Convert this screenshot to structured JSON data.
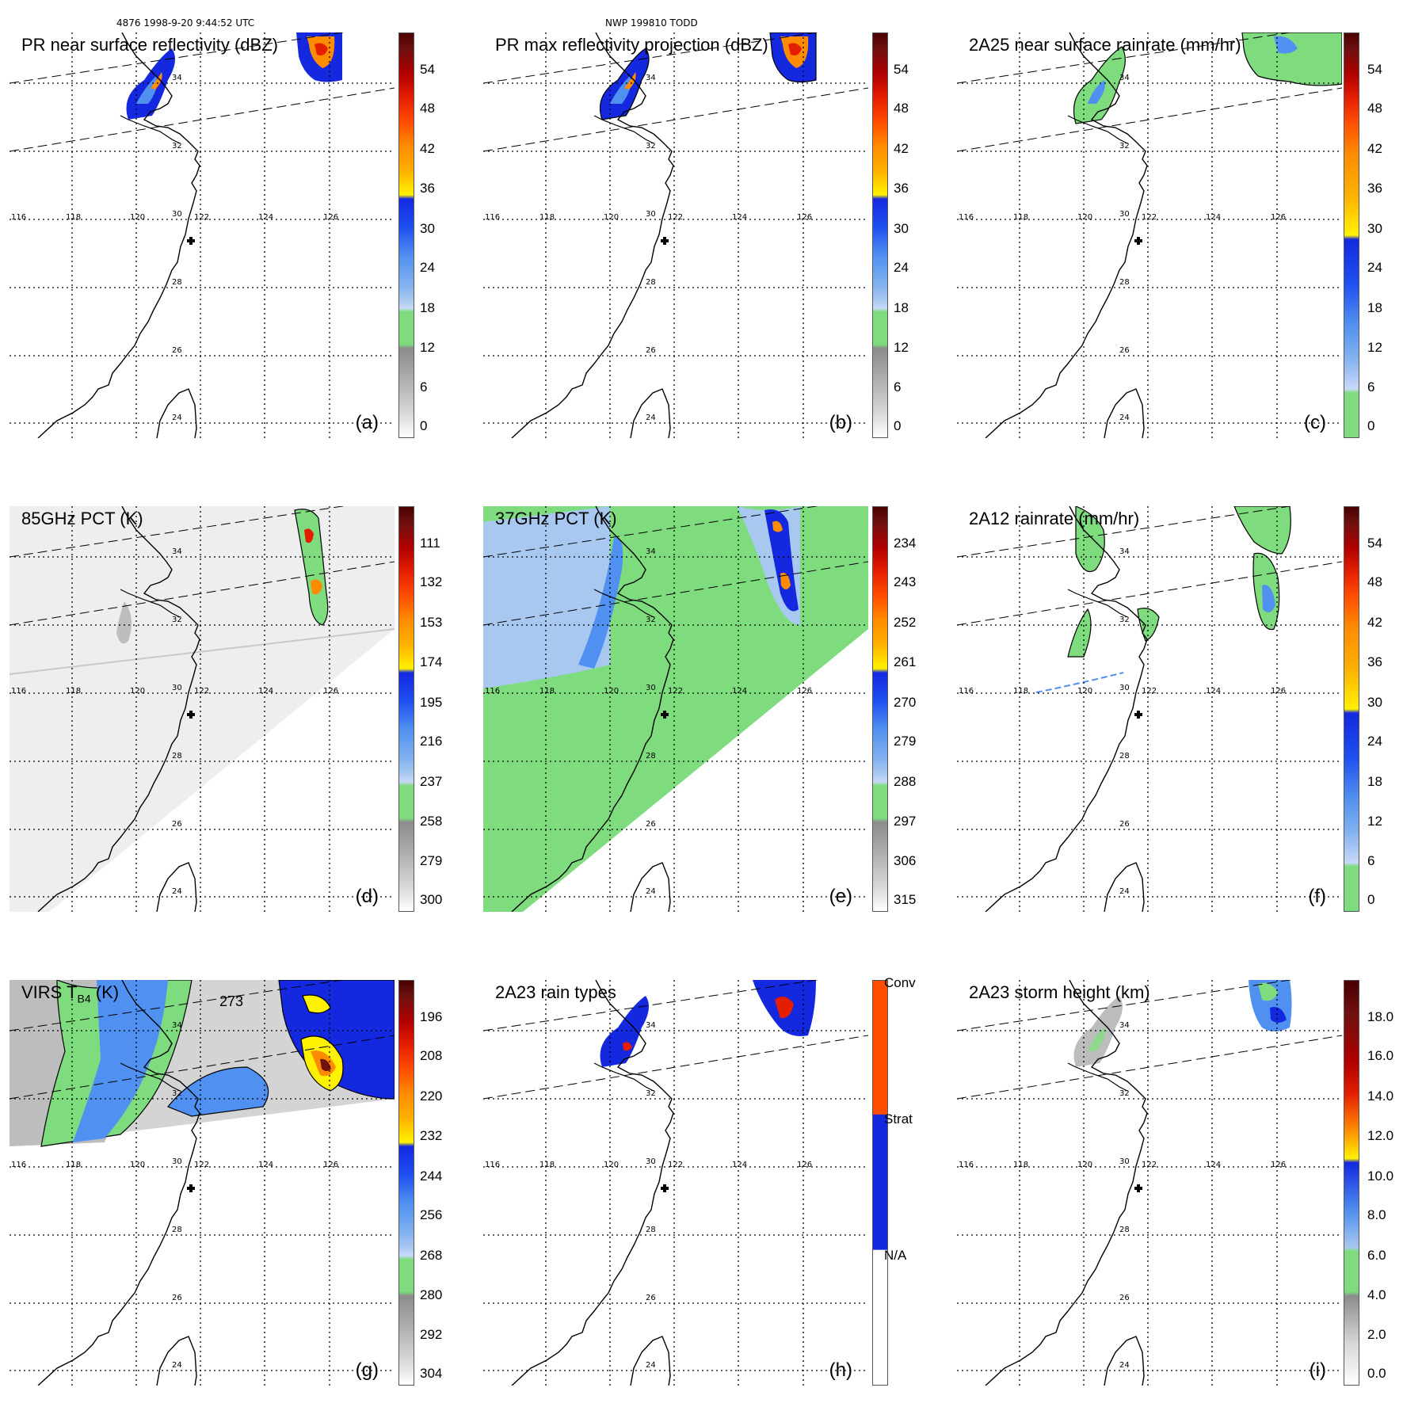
{
  "header": {
    "orbit_time": "4876 1998-9-20 9:44:52 UTC",
    "case_name": "NWP 199810 TODD"
  },
  "map_labels": {
    "longitudes": [
      "116",
      "118",
      "120",
      "122",
      "124",
      "126"
    ],
    "latitudes": [
      "34",
      "32",
      "30",
      "28",
      "26",
      "24"
    ]
  },
  "colors": {
    "green": "#7edc7e",
    "light_blue": "#a8c8f0",
    "mid_blue": "#5090f0",
    "dark_blue": "#1428e0",
    "yellow": "#fff200",
    "orange": "#ff8c00",
    "red": "#e61e00",
    "dark_red": "#701010",
    "gray": "#c8c8c8"
  },
  "panels": [
    {
      "id": "a",
      "title": "PR near surface reflectivity (dBZ)",
      "label": "(a)",
      "colorbar": [
        "54",
        "48",
        "42",
        "36",
        "30",
        "24",
        "18",
        "12",
        "6",
        "0"
      ]
    },
    {
      "id": "b",
      "title": "PR max reflectivity projection (dBZ)",
      "label": "(b)",
      "colorbar": [
        "54",
        "48",
        "42",
        "36",
        "30",
        "24",
        "18",
        "12",
        "6",
        "0"
      ]
    },
    {
      "id": "c",
      "title": "2A25 near surface rainrate (mm/hr)",
      "label": "(c)",
      "colorbar": [
        "54",
        "48",
        "42",
        "36",
        "30",
        "24",
        "18",
        "12",
        "6",
        "0"
      ]
    },
    {
      "id": "d",
      "title": "85GHz PCT (K)",
      "label": "(d)",
      "colorbar": [
        "111",
        "132",
        "153",
        "174",
        "195",
        "216",
        "237",
        "258",
        "279",
        "300"
      ]
    },
    {
      "id": "e",
      "title": "37GHz PCT (K)",
      "label": "(e)",
      "colorbar": [
        "234",
        "243",
        "252",
        "261",
        "270",
        "279",
        "288",
        "297",
        "306",
        "315"
      ]
    },
    {
      "id": "f",
      "title": "2A12 rainrate (mm/hr)",
      "label": "(f)",
      "colorbar": [
        "54",
        "48",
        "42",
        "36",
        "30",
        "24",
        "18",
        "12",
        "6",
        "0"
      ]
    },
    {
      "id": "g",
      "title": "VIRS T  (K)",
      "title_sub": "B4",
      "label": "(g)",
      "annotation": "273",
      "colorbar": [
        "196",
        "208",
        "220",
        "232",
        "244",
        "256",
        "268",
        "280",
        "292",
        "304"
      ]
    },
    {
      "id": "h",
      "title": "2A23 rain types",
      "label": "(h)",
      "colorbar": [
        "Conv",
        "Strat",
        "N/A"
      ]
    },
    {
      "id": "i",
      "title": "2A23 storm height (km)",
      "label": "(i)",
      "colorbar": [
        "18.0",
        "16.0",
        "14.0",
        "12.0",
        "10.0",
        "8.0",
        "6.0",
        "4.0",
        "2.0",
        "0.0"
      ]
    }
  ]
}
